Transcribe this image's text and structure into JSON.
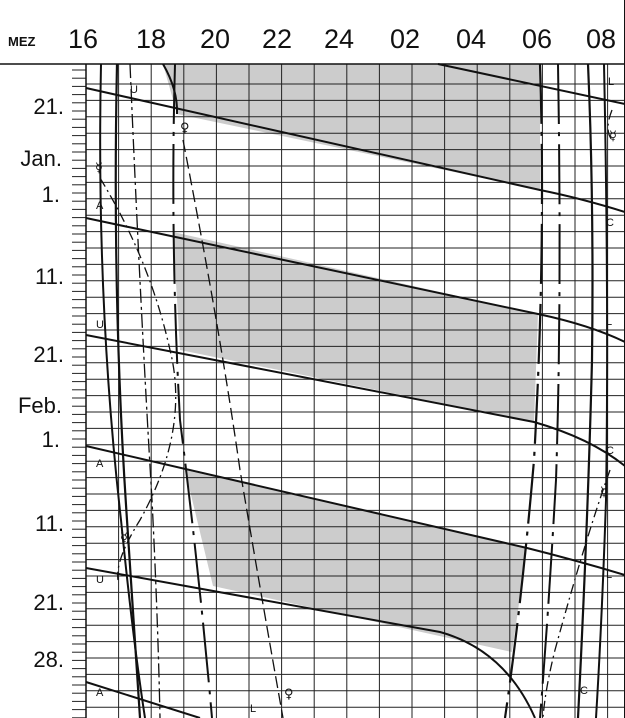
{
  "header": {
    "zone_label": "MEZ",
    "hours": [
      "16",
      "18",
      "20",
      "22",
      "24",
      "02",
      "04",
      "06",
      "08"
    ]
  },
  "dates": {
    "labels": [
      "21.",
      "1.",
      "11.",
      "21.",
      "1.",
      "11.",
      "21.",
      "28."
    ],
    "months": [
      "Jan.",
      "Feb."
    ]
  },
  "curve_labels": {
    "U": "U",
    "A": "A",
    "L": "L",
    "C": "C",
    "venus": "♀",
    "mercury": "☿"
  },
  "colors": {
    "ink": "#111111",
    "shade": "#cccccc",
    "grid": "#222222"
  }
}
